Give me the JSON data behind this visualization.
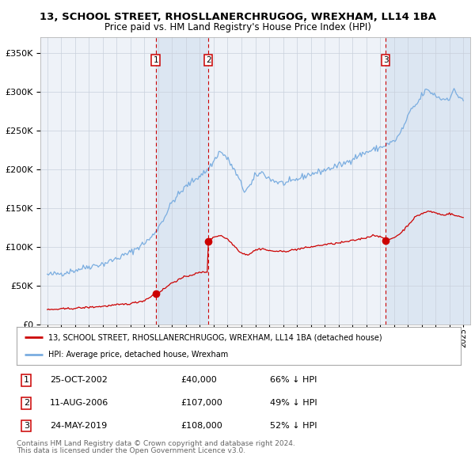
{
  "title": "13, SCHOOL STREET, RHOSLLANERCHRUGOG, WREXHAM, LL14 1BA",
  "subtitle": "Price paid vs. HM Land Registry's House Price Index (HPI)",
  "legend_label_red": "13, SCHOOL STREET, RHOSLLANERCHRUGOG, WREXHAM, LL14 1BA (detached house)",
  "legend_label_blue": "HPI: Average price, detached house, Wrexham",
  "footer_line1": "Contains HM Land Registry data © Crown copyright and database right 2024.",
  "footer_line2": "This data is licensed under the Open Government Licence v3.0.",
  "transactions": [
    {
      "num": 1,
      "date": "25-OCT-2002",
      "price": 40000,
      "price_str": "£40,000",
      "hpi_pct": "66% ↓ HPI"
    },
    {
      "num": 2,
      "date": "11-AUG-2006",
      "price": 107000,
      "price_str": "£107,000",
      "hpi_pct": "49% ↓ HPI"
    },
    {
      "num": 3,
      "date": "24-MAY-2019",
      "price": 108000,
      "price_str": "£108,000",
      "hpi_pct": "52% ↓ HPI"
    }
  ],
  "transaction_dates_decimal": [
    2002.814,
    2006.607,
    2019.392
  ],
  "sale_prices": [
    40000,
    107000,
    108000
  ],
  "ylim": [
    0,
    370000
  ],
  "xlim_start": 1994.5,
  "xlim_end": 2025.5,
  "bg_color": "#eef2f8",
  "grid_color": "#c8d0dc",
  "red_color": "#cc0000",
  "blue_color": "#7aade0",
  "shade_color": "#dce6f2"
}
